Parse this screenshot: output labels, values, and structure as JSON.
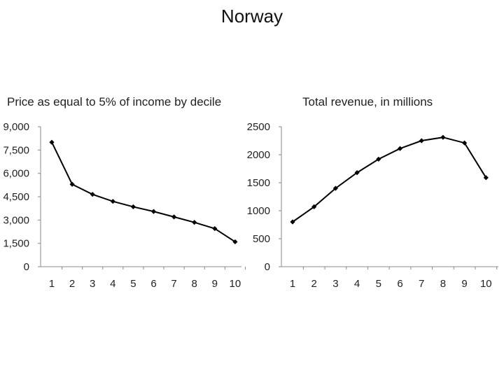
{
  "slide": {
    "title": "Norway"
  },
  "chart_data": [
    {
      "type": "line",
      "title": "Price as equal to 5% of income by decile",
      "xlabel": "",
      "ylabel": "",
      "categories": [
        "1",
        "2",
        "3",
        "4",
        "5",
        "6",
        "7",
        "8",
        "9",
        "10"
      ],
      "yticks": [
        "0",
        "1,500",
        "3,000",
        "4,500",
        "6,000",
        "7,500",
        "9,000"
      ],
      "ylim": [
        0,
        9000
      ],
      "grid": false,
      "series": [
        {
          "values": [
            8000,
            5300,
            4650,
            4200,
            3850,
            3550,
            3200,
            2850,
            2450,
            1600
          ]
        }
      ]
    },
    {
      "type": "line",
      "title": "Total revenue, in millions",
      "xlabel": "",
      "ylabel": "",
      "categories": [
        "1",
        "2",
        "3",
        "4",
        "5",
        "6",
        "7",
        "8",
        "9",
        "10"
      ],
      "yticks": [
        "0",
        "500",
        "1000",
        "1500",
        "2000",
        "2500"
      ],
      "ylim": [
        0,
        2500
      ],
      "grid": false,
      "series": [
        {
          "values": [
            800,
            1070,
            1400,
            1680,
            1920,
            2110,
            2250,
            2310,
            2210,
            1590
          ]
        }
      ]
    }
  ]
}
